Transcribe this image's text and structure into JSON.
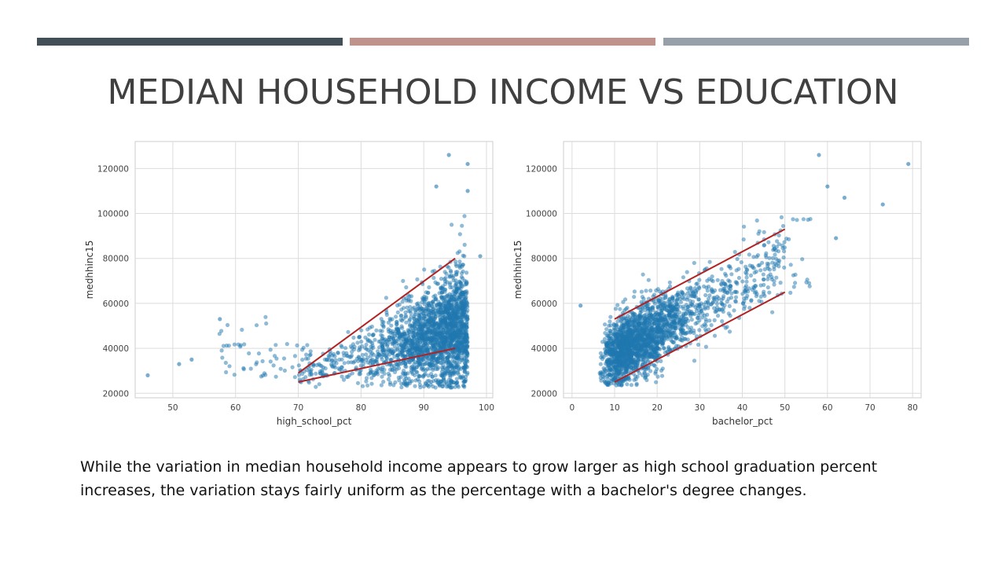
{
  "title": "MEDIAN HOUSEHOLD INCOME VS EDUCATION",
  "caption": "While the variation in median household income appears to grow larger as high school graduation percent increases, the variation stays fairly uniform as the percentage with a bachelor's degree changes.",
  "colors": {
    "title_text": "#404040",
    "bar1": "#434F56",
    "bar2": "#C0928C",
    "bar3": "#97A0A8",
    "points": "#1f78b0",
    "trend_lines": "#B22222",
    "grid": "#dcdcdc",
    "frame": "#cccccc"
  },
  "chart_data": [
    {
      "type": "scatter",
      "xlabel": "high_school_pct",
      "ylabel": "medhhinc15",
      "xlim": [
        44,
        101
      ],
      "ylim": [
        18000,
        132000
      ],
      "x_ticks": [
        50,
        60,
        70,
        80,
        90,
        100
      ],
      "y_ticks": [
        20000,
        40000,
        60000,
        80000,
        100000,
        120000
      ],
      "grid": true,
      "notable_points": [
        {
          "x": 46,
          "y": 28000
        },
        {
          "x": 51,
          "y": 33000
        },
        {
          "x": 53,
          "y": 35000
        },
        {
          "x": 57.5,
          "y": 53000
        },
        {
          "x": 94,
          "y": 126000
        },
        {
          "x": 97,
          "y": 122000
        },
        {
          "x": 92,
          "y": 112000
        },
        {
          "x": 97,
          "y": 110000
        },
        {
          "x": 99,
          "y": 81000
        }
      ],
      "trend_lines": [
        {
          "x": [
            70,
            95
          ],
          "y": [
            29000,
            80000
          ]
        },
        {
          "x": [
            70,
            95
          ],
          "y": [
            25000,
            40000
          ]
        }
      ]
    },
    {
      "type": "scatter",
      "xlabel": "bachelor_pct",
      "ylabel": "medhhinc15",
      "xlim": [
        -2,
        82
      ],
      "ylim": [
        18000,
        132000
      ],
      "x_ticks": [
        0,
        10,
        20,
        30,
        40,
        50,
        60,
        70,
        80
      ],
      "y_ticks": [
        20000,
        40000,
        60000,
        80000,
        100000,
        120000
      ],
      "grid": true,
      "notable_points": [
        {
          "x": 2,
          "y": 59000
        },
        {
          "x": 58,
          "y": 126000
        },
        {
          "x": 79,
          "y": 122000
        },
        {
          "x": 73,
          "y": 104000
        },
        {
          "x": 60,
          "y": 112000
        },
        {
          "x": 64,
          "y": 107000
        },
        {
          "x": 62,
          "y": 89000
        }
      ],
      "trend_lines": [
        {
          "x": [
            10,
            50
          ],
          "y": [
            53000,
            93000
          ]
        },
        {
          "x": [
            10,
            50
          ],
          "y": [
            25000,
            65000
          ]
        }
      ]
    }
  ]
}
